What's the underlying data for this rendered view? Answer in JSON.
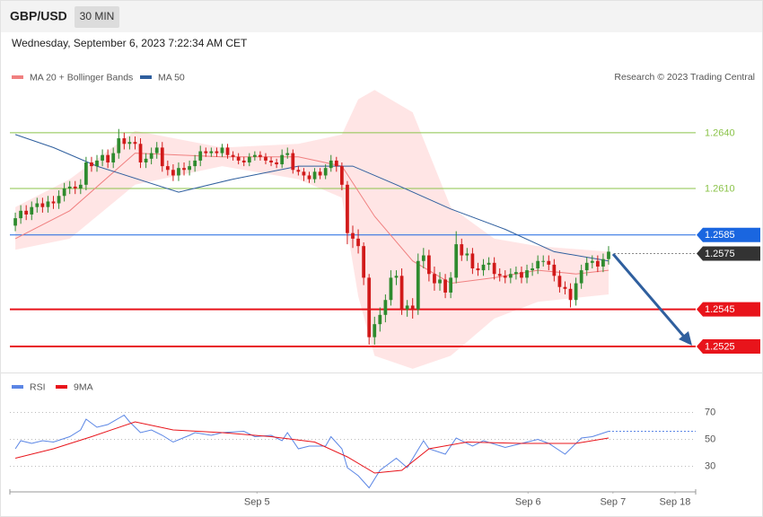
{
  "chart_data": [
    {
      "type": "candlestick",
      "title": "GBP/USD",
      "interval": "30 MIN",
      "subtitle": "Wednesday, September 6, 2023 7:22:34 AM CET",
      "source": "Research © 2023 Trading Central",
      "xlim": [
        -1,
        125
      ],
      "ylim": [
        1.2511,
        1.2666
      ],
      "up_color": "#2e8b2e",
      "down_color": "#d11a1a",
      "open": [
        1.259,
        1.2594,
        1.2598,
        1.2596,
        1.26,
        1.2602,
        1.26,
        1.2603,
        1.2602,
        1.2606,
        1.261,
        1.2611,
        1.261,
        1.2612,
        1.2624,
        1.2622,
        1.2625,
        1.2628,
        1.2624,
        1.2629,
        1.2637,
        1.2634,
        1.2635,
        1.2634,
        1.2624,
        1.2626,
        1.2629,
        1.2632,
        1.2622,
        1.262,
        1.2617,
        1.2621,
        1.262,
        1.2622,
        1.2625,
        1.263,
        1.2629,
        1.263,
        1.2629,
        1.2632,
        1.2628,
        1.2627,
        1.2625,
        1.2624,
        1.2627,
        1.2628,
        1.2627,
        1.2625,
        1.2624,
        1.2623,
        1.2628,
        1.2629,
        1.262,
        1.2619,
        1.2617,
        1.2615,
        1.2619,
        1.2617,
        1.2621,
        1.2625,
        1.2622,
        1.2612,
        1.2586,
        1.2583,
        1.2579,
        1.2562,
        1.253,
        1.2537,
        1.2542,
        1.255,
        1.2562,
        1.2563,
        1.2545,
        1.2547,
        1.2545,
        1.2571,
        1.2574,
        1.2564,
        1.2559,
        1.2561,
        1.2554,
        1.2562,
        1.258,
        1.2574,
        1.2575,
        1.2567,
        1.2566,
        1.2569,
        1.257,
        1.2564,
        1.2563,
        1.2562,
        1.2564,
        1.2565,
        1.2562,
        1.2566,
        1.2567,
        1.2571,
        1.2571,
        1.2569,
        1.2563,
        1.2557,
        1.2556,
        1.255,
        1.2559,
        1.2566,
        1.257,
        1.2571,
        1.2568,
        1.2572
      ],
      "high": [
        1.2597,
        1.2601,
        1.2601,
        1.2603,
        1.2605,
        1.2605,
        1.2606,
        1.2606,
        1.2609,
        1.2613,
        1.2614,
        1.2614,
        1.2615,
        1.2627,
        1.2627,
        1.2628,
        1.2631,
        1.2631,
        1.2632,
        1.2642,
        1.264,
        1.2638,
        1.2638,
        1.2637,
        1.2629,
        1.2632,
        1.2635,
        1.2635,
        1.2625,
        1.2623,
        1.2624,
        1.2624,
        1.2625,
        1.2628,
        1.2633,
        1.2632,
        1.2632,
        1.2632,
        1.2634,
        1.2634,
        1.263,
        1.2629,
        1.2627,
        1.2629,
        1.263,
        1.263,
        1.2629,
        1.2627,
        1.2626,
        1.2631,
        1.2632,
        1.2631,
        1.2622,
        1.2621,
        1.2619,
        1.2621,
        1.2621,
        1.2623,
        1.2628,
        1.2627,
        1.2624,
        1.2614,
        1.259,
        1.2588,
        1.2581,
        1.2564,
        1.2541,
        1.2546,
        1.2553,
        1.2566,
        1.2566,
        1.2567,
        1.255,
        1.2551,
        1.2575,
        1.2578,
        1.2577,
        1.2568,
        1.2565,
        1.2564,
        1.2565,
        1.2587,
        1.2583,
        1.2578,
        1.2578,
        1.257,
        1.2572,
        1.2573,
        1.2573,
        1.2567,
        1.2566,
        1.2567,
        1.2568,
        1.2568,
        1.2569,
        1.257,
        1.2574,
        1.2574,
        1.2574,
        1.2572,
        1.2566,
        1.256,
        1.2559,
        1.2562,
        1.2569,
        1.2573,
        1.2574,
        1.2574,
        1.2575,
        1.2579
      ],
      "low": [
        1.2587,
        1.2591,
        1.2593,
        1.2593,
        1.2597,
        1.2597,
        1.2597,
        1.2599,
        1.2599,
        1.2603,
        1.2607,
        1.2607,
        1.2607,
        1.2609,
        1.2619,
        1.2619,
        1.2622,
        1.2621,
        1.2621,
        1.2626,
        1.2631,
        1.2631,
        1.2631,
        1.2621,
        1.2621,
        1.2623,
        1.2626,
        1.2619,
        1.2617,
        1.2614,
        1.2614,
        1.2617,
        1.2617,
        1.2619,
        1.2622,
        1.2627,
        1.2627,
        1.2627,
        1.2627,
        1.2626,
        1.2625,
        1.2623,
        1.2622,
        1.2622,
        1.2625,
        1.2625,
        1.2623,
        1.2622,
        1.2621,
        1.2621,
        1.2626,
        1.2618,
        1.2617,
        1.2614,
        1.2613,
        1.2613,
        1.2615,
        1.2615,
        1.2619,
        1.2619,
        1.2609,
        1.258,
        1.2578,
        1.2575,
        1.2558,
        1.2526,
        1.2526,
        1.2533,
        1.2538,
        1.2547,
        1.2558,
        1.2542,
        1.2541,
        1.254,
        1.2542,
        1.2567,
        1.256,
        1.2555,
        1.2555,
        1.2551,
        1.2551,
        1.2559,
        1.2571,
        1.2571,
        1.2564,
        1.2563,
        1.2563,
        1.2566,
        1.2561,
        1.256,
        1.2559,
        1.2559,
        1.2561,
        1.2559,
        1.2559,
        1.2563,
        1.2564,
        1.2568,
        1.2566,
        1.256,
        1.2554,
        1.2553,
        1.2546,
        1.2547,
        1.2556,
        1.2563,
        1.2567,
        1.2565,
        1.2565,
        1.2569
      ],
      "close": [
        1.2594,
        1.2598,
        1.2596,
        1.26,
        1.2602,
        1.26,
        1.2603,
        1.2602,
        1.2606,
        1.261,
        1.2611,
        1.261,
        1.2612,
        1.2624,
        1.2622,
        1.2625,
        1.2628,
        1.2624,
        1.2629,
        1.2637,
        1.2634,
        1.2635,
        1.2634,
        1.2624,
        1.2626,
        1.2629,
        1.2632,
        1.2622,
        1.262,
        1.2617,
        1.2621,
        1.262,
        1.2622,
        1.2625,
        1.263,
        1.2629,
        1.263,
        1.2629,
        1.2632,
        1.2628,
        1.2627,
        1.2625,
        1.2624,
        1.2627,
        1.2628,
        1.2627,
        1.2625,
        1.2624,
        1.2623,
        1.2628,
        1.2629,
        1.262,
        1.2619,
        1.2617,
        1.2615,
        1.2619,
        1.2617,
        1.2621,
        1.2625,
        1.2622,
        1.2612,
        1.2586,
        1.2583,
        1.2579,
        1.2562,
        1.253,
        1.2537,
        1.2542,
        1.255,
        1.2562,
        1.2563,
        1.2545,
        1.2547,
        1.2545,
        1.2571,
        1.2574,
        1.2564,
        1.2559,
        1.2561,
        1.2554,
        1.2562,
        1.258,
        1.2574,
        1.2575,
        1.2567,
        1.2566,
        1.2569,
        1.257,
        1.2564,
        1.2563,
        1.2562,
        1.2564,
        1.2565,
        1.2562,
        1.2566,
        1.2567,
        1.2571,
        1.2571,
        1.2569,
        1.2563,
        1.2557,
        1.2556,
        1.255,
        1.2559,
        1.2566,
        1.257,
        1.2571,
        1.2568,
        1.2572,
        1.2576
      ],
      "bands": {
        "color": "#ffdede",
        "x": [
          0,
          10,
          22,
          38,
          52,
          60,
          63,
          66,
          73,
          80,
          88,
          96,
          109
        ],
        "upper": [
          1.26,
          1.2615,
          1.2641,
          1.2632,
          1.2634,
          1.2639,
          1.2658,
          1.2663,
          1.2651,
          1.26,
          1.2583,
          1.2579,
          1.2576
        ],
        "lower": [
          1.2577,
          1.2583,
          1.2612,
          1.2622,
          1.2615,
          1.2605,
          1.2552,
          1.252,
          1.2513,
          1.252,
          1.254,
          1.2549,
          1.2553
        ]
      },
      "lines": [
        {
          "name": "MA 20 + Bollinger Bands",
          "color": "#f08080",
          "x": [
            0,
            10,
            22,
            38,
            52,
            60,
            66,
            73,
            80,
            88,
            96,
            103,
            109
          ],
          "values": [
            1.2583,
            1.2598,
            1.2629,
            1.2627,
            1.2627,
            1.2622,
            1.2595,
            1.2571,
            1.2559,
            1.2562,
            1.2566,
            1.2564,
            1.2566
          ]
        },
        {
          "name": "MA 50",
          "color": "#2f5f9e",
          "x": [
            0,
            7,
            15,
            30,
            40,
            52,
            62,
            70,
            80,
            90,
            99,
            109
          ],
          "values": [
            1.2639,
            1.2632,
            1.2622,
            1.2608,
            1.2615,
            1.2622,
            1.2622,
            1.2612,
            1.2599,
            1.2588,
            1.2576,
            1.2571
          ]
        }
      ],
      "levels": [
        {
          "value": 1.264,
          "label": "1.2640",
          "color": "#8bc34a",
          "line": "thin",
          "tag": false
        },
        {
          "value": 1.261,
          "label": "1.2610",
          "color": "#8bc34a",
          "line": "thin",
          "tag": false
        },
        {
          "value": 1.2585,
          "label": "1.2585",
          "color": "#1a66e0",
          "line": "thin",
          "tag": true
        },
        {
          "value": 1.2575,
          "label": "1.2575",
          "color": "#333333",
          "line": "dotted",
          "tag": true
        },
        {
          "value": 1.2545,
          "label": "1.2545",
          "color": "#e8141b",
          "line": "thick",
          "tag": true
        },
        {
          "value": 1.2525,
          "label": "1.2525",
          "color": "#e8141b",
          "line": "thick",
          "tag": true
        }
      ]
    },
    {
      "type": "line",
      "xlim": [
        -1,
        125
      ],
      "ylim": [
        13,
        83
      ],
      "yticks": [
        30,
        50,
        70
      ],
      "grid": true,
      "xticks": [
        {
          "value": 44.4,
          "label": "Sep 5"
        },
        {
          "value": 94.2,
          "label": "Sep 6"
        },
        {
          "value": 109.8,
          "label": "Sep 7"
        },
        {
          "value": 121.2,
          "label": "Sep 18"
        }
      ],
      "series": [
        {
          "name": "RSI",
          "color": "#5b86e5",
          "extend": true,
          "x": [
            0,
            1,
            3,
            5,
            7,
            10,
            12,
            13,
            15,
            17,
            20,
            21,
            23,
            25,
            27,
            29,
            32,
            33,
            36,
            38,
            42,
            44,
            47,
            49,
            50,
            52,
            54,
            57,
            58,
            60,
            61,
            63,
            65,
            67,
            70,
            72,
            75,
            76,
            79,
            81,
            84,
            86,
            90,
            93,
            96,
            98,
            101,
            104,
            106,
            109
          ],
          "values": [
            43,
            49,
            47,
            49,
            48,
            52,
            57,
            65,
            59,
            61,
            68,
            63,
            55,
            57,
            53,
            48,
            53,
            55,
            53,
            55,
            56,
            52,
            53,
            49,
            55,
            43,
            45,
            45,
            52,
            43,
            29,
            23,
            14,
            27,
            36,
            29,
            49,
            43,
            39,
            51,
            45,
            49,
            44,
            47,
            50,
            47,
            39,
            51,
            52,
            56
          ]
        },
        {
          "name": "9MA",
          "color": "#e8141b",
          "extend": false,
          "x": [
            0,
            7,
            14,
            22,
            29,
            38,
            47,
            55,
            61,
            66,
            71,
            76,
            83,
            93,
            103,
            109
          ],
          "values": [
            36,
            43,
            52,
            63,
            57,
            55,
            52,
            48,
            37,
            25,
            27,
            43,
            48,
            47,
            47,
            51
          ]
        }
      ]
    }
  ]
}
